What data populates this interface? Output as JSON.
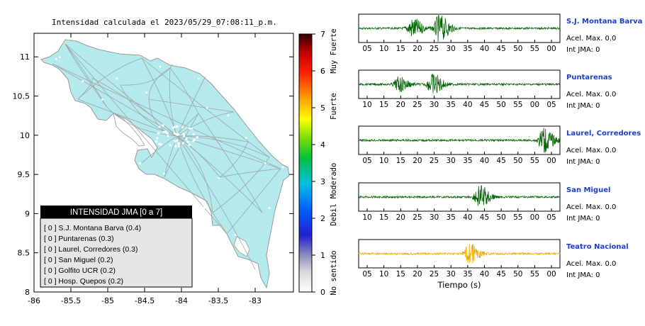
{
  "map_title": "Intensidad calculada el 2023/05/29_07:08:11_p.m.",
  "map": {
    "x_ticks": [
      "-86",
      "-85.5",
      "-85",
      "-84.5",
      "-84",
      "-83.5",
      "-83"
    ],
    "y_ticks": [
      "11",
      "10.5",
      "10",
      "9.5",
      "9",
      "8.5",
      "8"
    ],
    "land_color": "#b4eaec",
    "water_color": "#ffffff"
  },
  "colorbar": {
    "ticks": [
      "0",
      "1",
      "2",
      "3",
      "4",
      "5",
      "6",
      "7"
    ],
    "labels": [
      "No sentido",
      "Debil",
      "Moderado",
      "Fuerte",
      "Muy Fuerte"
    ]
  },
  "legend": {
    "title": "INTENSIDAD JMA [0 a 7]",
    "items": [
      "[ 0 ]  S.J. Montana Barva (0.4)",
      "[ 0 ]  Puntarenas (0.3)",
      "[ 0 ]  Laurel, Corredores (0.3)",
      "[ 0 ]  San Miguel (0.2)",
      "[ 0 ]  Golfito UCR (0.2)",
      "[ 0 ]  Hosp. Quepos (0.2)"
    ]
  },
  "chart_data": [
    {
      "type": "line",
      "xlabel": "",
      "ylabel": "",
      "xlim": [
        -86,
        -82.6
      ],
      "ylim": [
        8,
        11.3
      ],
      "note": "map of Costa Rica with shaded intensity level 0"
    },
    {
      "type": "line",
      "title": "S.J. Montana Barva",
      "x_ticks": [
        "05",
        "10",
        "15",
        "20",
        "25",
        "30",
        "35",
        "40",
        "45",
        "50",
        "55",
        "00"
      ],
      "annotations": [
        "Acel. Max. 0.0",
        "Int JMA: 0"
      ],
      "color": "#006400",
      "bursts": [
        {
          "t": 16,
          "a": 0.75
        },
        {
          "t": 24,
          "a": 1.0
        }
      ]
    },
    {
      "type": "line",
      "title": "Puntarenas",
      "x_ticks": [
        "10",
        "15",
        "20",
        "25",
        "30",
        "35",
        "40",
        "45",
        "50",
        "55",
        "00",
        "05"
      ],
      "annotations": [
        "Acel. Max. 0.0",
        "Int JMA: 0"
      ],
      "color": "#006400",
      "bursts": [
        {
          "t": 12,
          "a": 0.55
        },
        {
          "t": 22,
          "a": 0.8
        }
      ]
    },
    {
      "type": "line",
      "title": "Laurel, Corredores",
      "x_ticks": [
        "05",
        "10",
        "15",
        "20",
        "25",
        "30",
        "35",
        "40",
        "45",
        "50",
        "55",
        "00"
      ],
      "annotations": [
        "Acel. Max. 0.0",
        "Int JMA: 0"
      ],
      "color": "#006400",
      "bursts": [
        {
          "t": 55,
          "a": 0.9
        }
      ]
    },
    {
      "type": "line",
      "title": "San Miguel",
      "x_ticks": [
        "10",
        "15",
        "20",
        "25",
        "30",
        "35",
        "40",
        "45",
        "50",
        "55",
        "00",
        "05"
      ],
      "annotations": [
        "Acel. Max. 0.0",
        "Int JMA: 0"
      ],
      "color": "#006400",
      "bursts": [
        {
          "t": 36,
          "a": 0.9
        }
      ]
    },
    {
      "type": "line",
      "title": "Teatro Nacional",
      "x_ticks": [
        "05",
        "10",
        "15",
        "20",
        "25",
        "30",
        "35",
        "40",
        "45",
        "50",
        "55",
        "00"
      ],
      "xlabel": "Tiempo (s)",
      "annotations": [
        "Acel. Max. 0.0",
        "Int JMA: 0"
      ],
      "color": "#f2a900",
      "bursts": [
        {
          "t": 33,
          "a": 0.75
        }
      ]
    }
  ]
}
